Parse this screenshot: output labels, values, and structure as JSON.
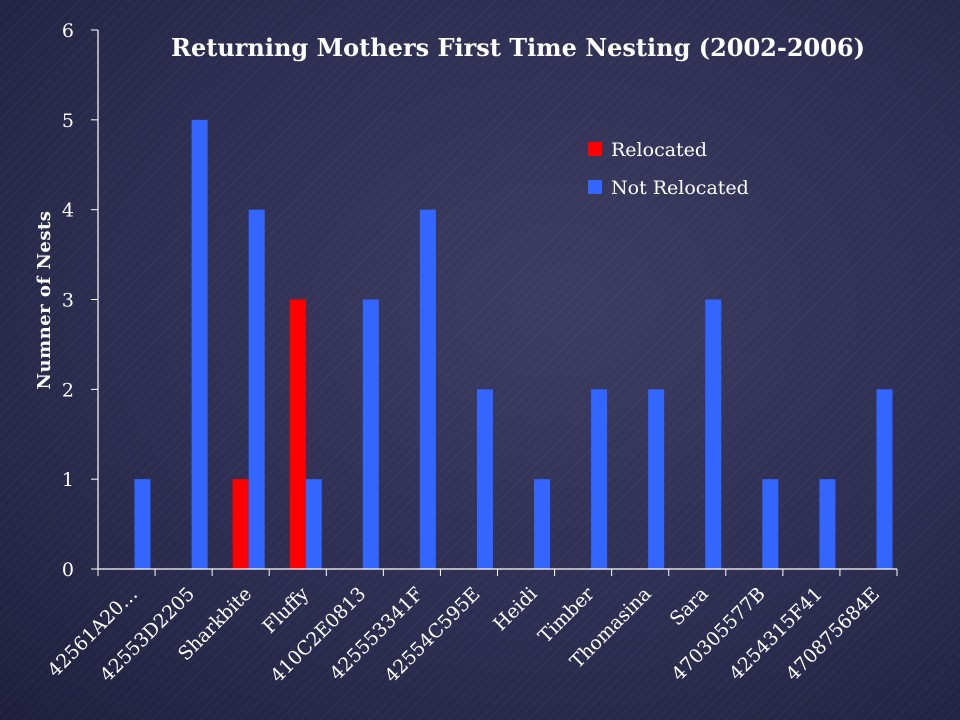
{
  "chart_data": {
    "type": "bar",
    "title": "Returning Mothers First Time Nesting (2002-2006)",
    "xlabel": "",
    "ylabel": "Numner of Nests",
    "ylim": [
      0,
      6
    ],
    "yticks": [
      0,
      1,
      2,
      3,
      4,
      5,
      6
    ],
    "grid": false,
    "legend_position": "top-right",
    "categories": [
      "42561A20…",
      "42553D2205",
      "Sharkbite",
      "Fluffy",
      "410C2E0813",
      "425553341F",
      "42554C595E",
      "Heidi",
      "Timber",
      "Thomasina",
      "Sara",
      "470305577B",
      "4254315F41",
      "470875684E"
    ],
    "series": [
      {
        "name": "Relocated",
        "color": "#ff0000",
        "values": [
          0,
          0,
          1,
          3,
          0,
          0,
          0,
          0,
          0,
          0,
          0,
          0,
          0,
          0
        ]
      },
      {
        "name": "Not Relocated",
        "color": "#3366ff",
        "values": [
          1,
          5,
          4,
          1,
          3,
          4,
          2,
          1,
          2,
          2,
          3,
          1,
          1,
          2
        ]
      }
    ]
  }
}
